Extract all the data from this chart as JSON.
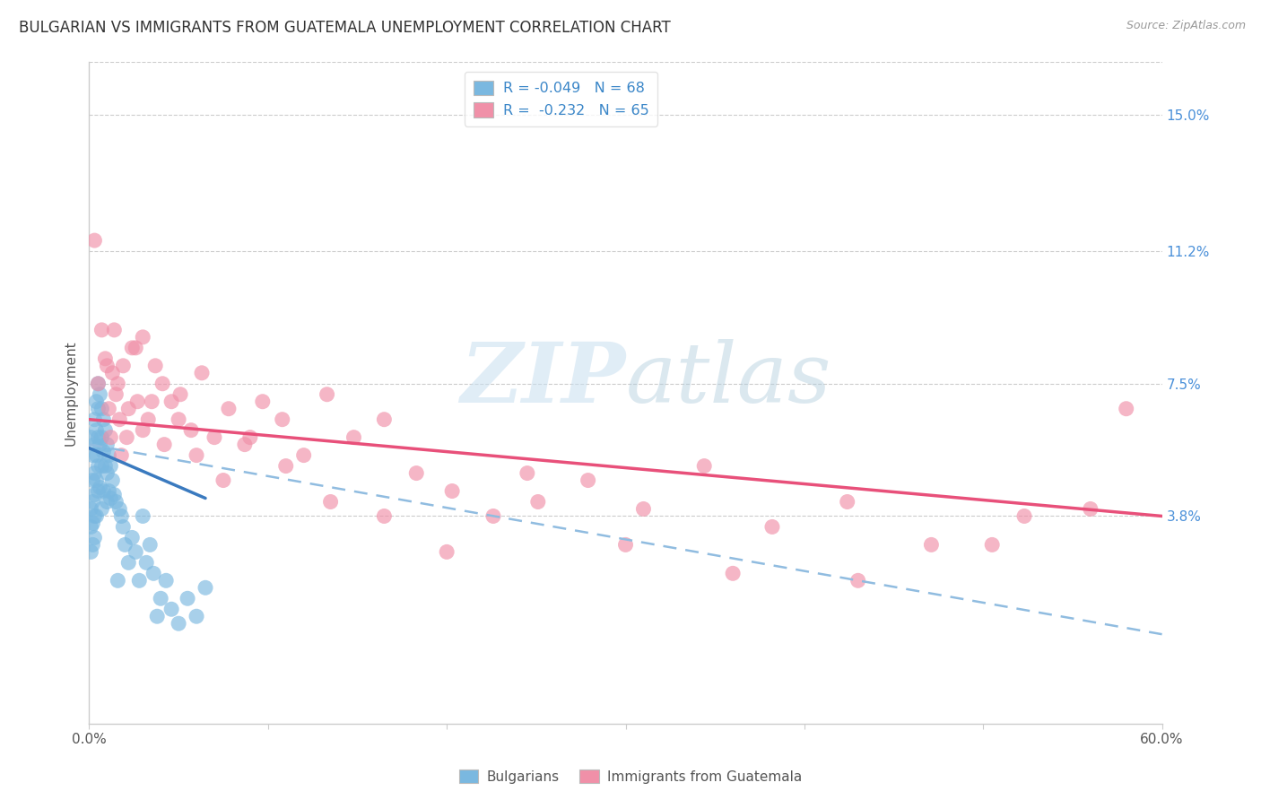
{
  "title": "BULGARIAN VS IMMIGRANTS FROM GUATEMALA UNEMPLOYMENT CORRELATION CHART",
  "source": "Source: ZipAtlas.com",
  "ylabel": "Unemployment",
  "y_tick_labels": [
    "15.0%",
    "11.2%",
    "7.5%",
    "3.8%"
  ],
  "y_tick_values": [
    0.15,
    0.112,
    0.075,
    0.038
  ],
  "xlim": [
    0.0,
    0.6
  ],
  "ylim": [
    -0.02,
    0.165
  ],
  "legend_entries": [
    {
      "label": "R = -0.049   N = 68",
      "color": "#a8c8e8"
    },
    {
      "label": "R =  -0.232   N = 65",
      "color": "#f4b8c8"
    }
  ],
  "legend_bottom": [
    "Bulgarians",
    "Immigrants from Guatemala"
  ],
  "watermark_zip": "ZIP",
  "watermark_atlas": "atlas",
  "blue_scatter_color": "#7ab8e0",
  "pink_scatter_color": "#f090a8",
  "blue_line_color": "#3a7abf",
  "pink_line_color": "#e8507a",
  "dashed_line_color": "#90bce0",
  "bulgarians_x": [
    0.001,
    0.001,
    0.001,
    0.001,
    0.002,
    0.002,
    0.002,
    0.002,
    0.002,
    0.003,
    0.003,
    0.003,
    0.003,
    0.003,
    0.003,
    0.004,
    0.004,
    0.004,
    0.004,
    0.004,
    0.005,
    0.005,
    0.005,
    0.005,
    0.005,
    0.006,
    0.006,
    0.006,
    0.007,
    0.007,
    0.007,
    0.007,
    0.008,
    0.008,
    0.008,
    0.009,
    0.009,
    0.01,
    0.01,
    0.01,
    0.011,
    0.011,
    0.012,
    0.012,
    0.013,
    0.014,
    0.015,
    0.016,
    0.017,
    0.018,
    0.019,
    0.02,
    0.022,
    0.024,
    0.026,
    0.028,
    0.03,
    0.032,
    0.034,
    0.036,
    0.038,
    0.04,
    0.043,
    0.046,
    0.05,
    0.055,
    0.06,
    0.065
  ],
  "bulgarians_y": [
    0.06,
    0.04,
    0.035,
    0.028,
    0.055,
    0.048,
    0.042,
    0.036,
    0.03,
    0.065,
    0.058,
    0.05,
    0.044,
    0.038,
    0.032,
    0.07,
    0.062,
    0.055,
    0.048,
    0.038,
    0.075,
    0.068,
    0.06,
    0.052,
    0.045,
    0.072,
    0.058,
    0.046,
    0.068,
    0.06,
    0.052,
    0.04,
    0.065,
    0.056,
    0.045,
    0.062,
    0.052,
    0.058,
    0.05,
    0.042,
    0.055,
    0.045,
    0.052,
    0.043,
    0.048,
    0.044,
    0.042,
    0.02,
    0.04,
    0.038,
    0.035,
    0.03,
    0.025,
    0.032,
    0.028,
    0.02,
    0.038,
    0.025,
    0.03,
    0.022,
    0.01,
    0.015,
    0.02,
    0.012,
    0.008,
    0.015,
    0.01,
    0.018
  ],
  "guatemala_x": [
    0.003,
    0.005,
    0.007,
    0.009,
    0.011,
    0.013,
    0.015,
    0.017,
    0.019,
    0.021,
    0.024,
    0.027,
    0.03,
    0.033,
    0.037,
    0.041,
    0.046,
    0.051,
    0.057,
    0.063,
    0.07,
    0.078,
    0.087,
    0.097,
    0.108,
    0.12,
    0.133,
    0.148,
    0.165,
    0.183,
    0.203,
    0.226,
    0.251,
    0.279,
    0.31,
    0.344,
    0.382,
    0.424,
    0.471,
    0.523,
    0.58,
    0.01,
    0.012,
    0.014,
    0.016,
    0.018,
    0.022,
    0.026,
    0.03,
    0.035,
    0.042,
    0.05,
    0.06,
    0.075,
    0.09,
    0.11,
    0.135,
    0.165,
    0.2,
    0.245,
    0.3,
    0.36,
    0.43,
    0.505,
    0.56
  ],
  "guatemala_y": [
    0.115,
    0.075,
    0.09,
    0.082,
    0.068,
    0.078,
    0.072,
    0.065,
    0.08,
    0.06,
    0.085,
    0.07,
    0.088,
    0.065,
    0.08,
    0.075,
    0.07,
    0.072,
    0.062,
    0.078,
    0.06,
    0.068,
    0.058,
    0.07,
    0.065,
    0.055,
    0.072,
    0.06,
    0.065,
    0.05,
    0.045,
    0.038,
    0.042,
    0.048,
    0.04,
    0.052,
    0.035,
    0.042,
    0.03,
    0.038,
    0.068,
    0.08,
    0.06,
    0.09,
    0.075,
    0.055,
    0.068,
    0.085,
    0.062,
    0.07,
    0.058,
    0.065,
    0.055,
    0.048,
    0.06,
    0.052,
    0.042,
    0.038,
    0.028,
    0.05,
    0.03,
    0.022,
    0.02,
    0.03,
    0.04
  ],
  "blue_trend_x": [
    0.0,
    0.065
  ],
  "blue_trend_y": [
    0.057,
    0.043
  ],
  "pink_trend_x": [
    0.0,
    0.6
  ],
  "pink_trend_y": [
    0.065,
    0.038
  ],
  "dashed_trend_x": [
    0.0,
    0.6
  ],
  "dashed_trend_y": [
    0.058,
    0.005
  ],
  "title_fontsize": 12,
  "axis_label_fontsize": 11,
  "tick_fontsize": 11,
  "background_color": "#ffffff"
}
